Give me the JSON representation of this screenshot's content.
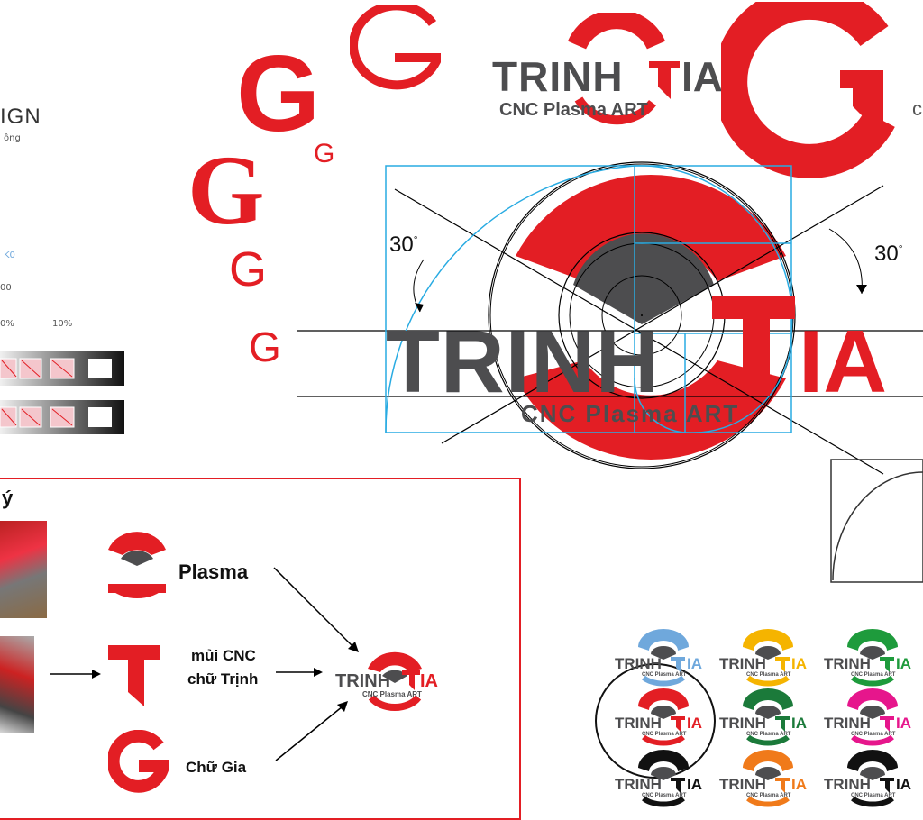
{
  "brand": {
    "name_part1": "TRINH",
    "name_part2": "IA",
    "tagline": "CNC Plasma ART",
    "red": "#e31e24",
    "gray": "#4d4d4f",
    "guide_blue": "#29abe2"
  },
  "left_panel": {
    "heading_fragment": "IGN",
    "sub_fragment": "ông",
    "tint_label_a": "K0",
    "tint_label_b": "00",
    "tint_label_c": "0%",
    "tint_label_d": "10%"
  },
  "sketch_g_letters": [
    "G",
    "G",
    "G",
    "G",
    "G",
    "G",
    "G"
  ],
  "construction": {
    "angle_left": "30",
    "angle_right": "30",
    "degree_symbol": "°"
  },
  "concept": {
    "heading_fragment": "ý",
    "item_plasma": "Plasma",
    "item_cnc_line1": "mủi CNC",
    "item_cnc_line2": "chữ Trịnh",
    "item_gia": "Chữ Gia",
    "frame_color": "#e31e24"
  },
  "right_edge_fragment": "c",
  "color_variants": [
    {
      "color": "#6fa8dc"
    },
    {
      "color": "#f5b400"
    },
    {
      "color": "#1e9b3c"
    },
    {
      "color": "#e31e24"
    },
    {
      "color": "#1b7a3a"
    },
    {
      "color": "#e6168c"
    },
    {
      "color": "#111111"
    },
    {
      "color": "#f07a1a"
    },
    {
      "color": "#111111"
    }
  ]
}
